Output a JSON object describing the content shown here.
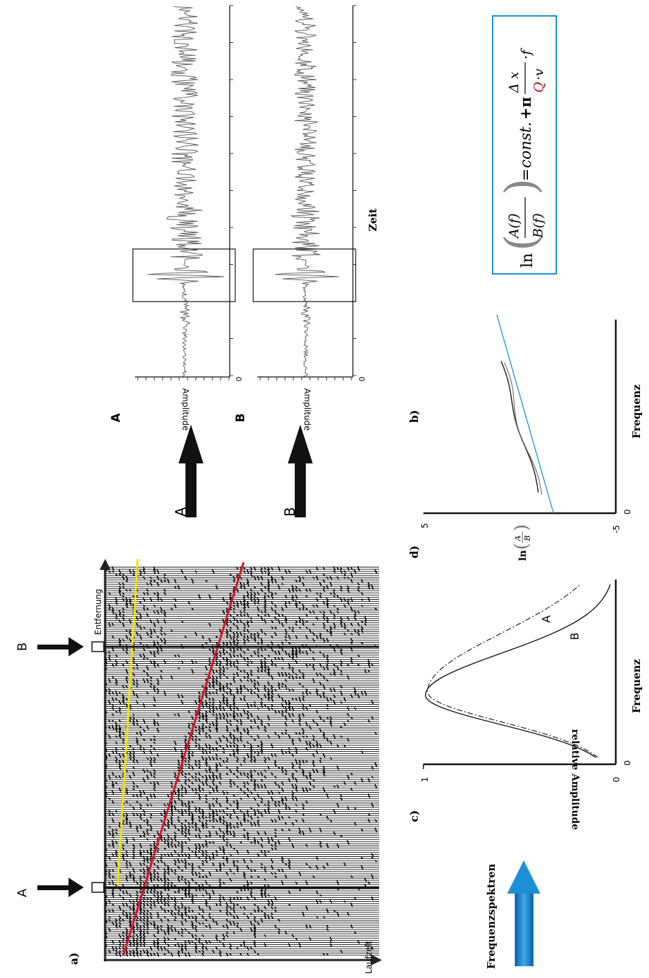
{
  "panel_labels": {
    "a": "a)",
    "b": "b)",
    "c": "c)",
    "d": "d)"
  },
  "seismogram": {
    "axis_x_label": "Laufzeit",
    "axis_y_label": "Entfernung",
    "station_a": "A",
    "station_b": "B",
    "line_colors": {
      "yellow": "#f2e200",
      "red": "#d8132a"
    }
  },
  "transfer_arrows": {
    "a": "A",
    "b": "B"
  },
  "traces": {
    "label_a": "A",
    "label_b": "B",
    "amplitude_label_a": "Amplitude",
    "amplitude_label_b": "Amplitude",
    "zero_a": "0",
    "zero_b": "0",
    "time_label": "Zeit"
  },
  "spectra": {
    "ylabel": "relative Amplitude",
    "xlabel": "Frequenz",
    "y_top": "1",
    "y_bottom": "0",
    "x_origin": "0",
    "curve_a": "A",
    "curve_b": "B"
  },
  "ratio": {
    "y_top": "5",
    "y_bottom": "-5",
    "x_origin": "0",
    "xlabel": "Frequenz",
    "ylabel_ln": "ln",
    "ylabel_num": "A",
    "ylabel_den": "B",
    "line_color": "#1d8fd6"
  },
  "formula": {
    "ln": "ln",
    "num": "A(f)",
    "den": "B(f)",
    "eq": "=",
    "const": "const.",
    "plus_pi": "+π",
    "dx": "Δ x",
    "qv_q": "Q",
    "qv_v": "·v",
    "times_f": "·f",
    "border_color": "#1d8fd6",
    "q_color": "#b3121f"
  },
  "frequenzspektren": {
    "label": "Frequenzspektren",
    "arrow_color": "#1d8fd6"
  }
}
